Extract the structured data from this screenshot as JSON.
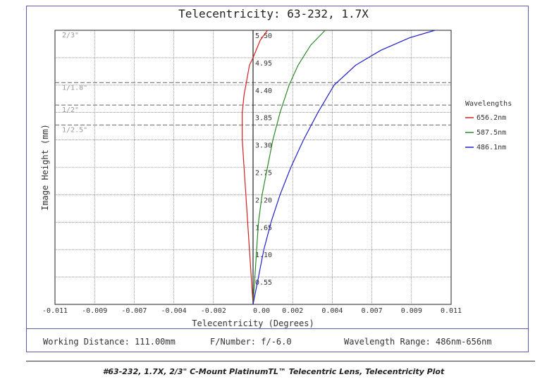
{
  "footer": {
    "working_distance": "Working Distance: 111.00mm",
    "f_number": "F/Number: f/-6.0",
    "wavelength_range": "Wavelength Range: 486nm-656nm"
  },
  "caption": "#63-232, 1.7X, 2/3\" C-Mount PlatinumTL™ Telecentric Lens, Telecentricity Plot",
  "colors": {
    "frame": "#5a5ab4",
    "red": "#d42020",
    "green": "#2a8a2a",
    "blue": "#2020cc"
  },
  "chart_data": {
    "type": "line",
    "title": "Telecentricity: 63-232, 1.7X",
    "xlabel": "Telecentricity (Degrees)",
    "ylabel": "Image Height (mm)",
    "xlim": [
      -0.011,
      0.011
    ],
    "ylim": [
      0,
      5.5
    ],
    "x_tick_labels": [
      "-0.011",
      "-0.009",
      "-0.007",
      "-0.004",
      "-0.002",
      "0.00",
      "0.002",
      "0.004",
      "0.007",
      "0.009",
      "0.011"
    ],
    "y_tick_labels": [
      "0.55",
      "1.10",
      "1.65",
      "2.20",
      "2.75",
      "3.30",
      "3.85",
      "4.40",
      "4.95",
      "5.50"
    ],
    "sensor_formats": [
      {
        "label": "2/3\"",
        "y": 5.5
      },
      {
        "label": "1/1.8\"",
        "y": 4.45
      },
      {
        "label": "1/2\"",
        "y": 4.0
      },
      {
        "label": "1/2.5\"",
        "y": 3.6
      }
    ],
    "legend_title": "Wavelengths",
    "legend_position": "right",
    "grid": true,
    "series": [
      {
        "name": "656.2nm",
        "color": "#d42020",
        "x": [
          0,
          -0.0001,
          -0.0002,
          -0.0003,
          -0.0004,
          -0.0005,
          -0.0006,
          -0.0006,
          -0.0006,
          -0.0005,
          -0.0004,
          -0.0002,
          0.0,
          0.0004,
          0.0008
        ],
        "y": [
          0,
          0.55,
          1.1,
          1.65,
          2.2,
          2.75,
          3.3,
          3.6,
          3.85,
          4.2,
          4.4,
          4.8,
          4.95,
          5.3,
          5.5
        ]
      },
      {
        "name": "587.5nm",
        "color": "#2a8a2a",
        "x": [
          0,
          0.0001,
          0.0002,
          0.0003,
          0.0005,
          0.0008,
          0.0011,
          0.0015,
          0.002,
          0.0025,
          0.0032,
          0.004
        ],
        "y": [
          0,
          0.55,
          1.1,
          1.65,
          2.2,
          2.75,
          3.3,
          3.85,
          4.4,
          4.8,
          5.2,
          5.5
        ]
      },
      {
        "name": "486.1nm",
        "color": "#2020cc",
        "x": [
          0,
          0.0003,
          0.0006,
          0.001,
          0.0015,
          0.0021,
          0.0028,
          0.0036,
          0.0045,
          0.0057,
          0.0071,
          0.0087,
          0.0101
        ],
        "y": [
          0,
          0.55,
          1.1,
          1.65,
          2.2,
          2.75,
          3.3,
          3.85,
          4.4,
          4.8,
          5.1,
          5.35,
          5.5
        ]
      }
    ]
  }
}
